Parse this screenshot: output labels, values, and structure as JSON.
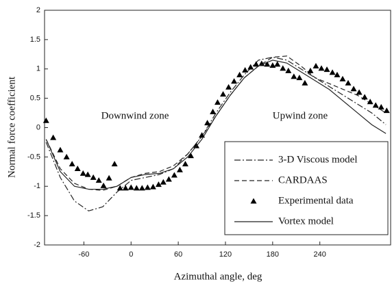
{
  "chart_data": {
    "type": "line",
    "xlabel": "Azimuthal angle, deg",
    "ylabel": "Normal force coefficient",
    "annotations": [
      "Downwind zone",
      "Upwind zone"
    ],
    "xlim": [
      -110,
      330
    ],
    "ylim": [
      -2,
      2
    ],
    "xticks": [
      -60,
      0,
      60,
      120,
      180,
      240
    ],
    "yticks": [
      -2,
      -1.5,
      -1,
      -0.5,
      0,
      0.5,
      1,
      1.5,
      2
    ],
    "series": [
      {
        "name": "3-D Viscous model",
        "color": "#222",
        "style": "dash-dot",
        "x": [
          -108,
          -90,
          -72,
          -54,
          -36,
          -18,
          0,
          18,
          36,
          54,
          72,
          90,
          108,
          126,
          144,
          162,
          180,
          198,
          216,
          234,
          252,
          270,
          288,
          306,
          324
        ],
        "values": [
          -0.25,
          -0.85,
          -1.25,
          -1.42,
          -1.35,
          -1.1,
          -0.9,
          -0.85,
          -0.8,
          -0.7,
          -0.45,
          -0.15,
          0.25,
          0.6,
          0.9,
          1.15,
          1.2,
          1.15,
          1.0,
          0.85,
          0.7,
          0.55,
          0.4,
          0.25,
          0.05
        ]
      },
      {
        "name": "CARDAAS",
        "color": "#222",
        "style": "dash",
        "x": [
          -108,
          -90,
          -72,
          -54,
          -36,
          -18,
          0,
          18,
          36,
          54,
          72,
          90,
          108,
          126,
          144,
          162,
          180,
          198,
          216,
          234,
          252,
          270,
          288,
          306,
          324
        ],
        "values": [
          -0.2,
          -0.7,
          -0.95,
          -1.05,
          -1.07,
          -1.0,
          -0.85,
          -0.78,
          -0.75,
          -0.65,
          -0.45,
          -0.15,
          0.2,
          0.55,
          0.85,
          1.05,
          1.2,
          1.22,
          1.05,
          0.85,
          0.75,
          0.65,
          0.55,
          0.4,
          0.25
        ]
      },
      {
        "name": "Experimental data",
        "color": "#000",
        "style": "triangle",
        "x": [
          -108,
          -99,
          -90,
          -82,
          -75,
          -68,
          -61,
          -55,
          -48,
          -41,
          -35,
          -28,
          -21,
          -14,
          -7,
          0,
          7,
          14,
          21,
          28,
          35,
          41,
          48,
          55,
          62,
          69,
          76,
          83,
          90,
          97,
          104,
          110,
          117,
          124,
          131,
          138,
          145,
          152,
          159,
          166,
          173,
          180,
          186,
          193,
          200,
          207,
          214,
          221,
          228,
          235,
          242,
          249,
          256,
          262,
          269,
          276,
          283,
          290,
          297,
          304,
          311,
          318,
          325
        ],
        "values": [
          0.12,
          -0.17,
          -0.38,
          -0.5,
          -0.62,
          -0.7,
          -0.78,
          -0.8,
          -0.85,
          -0.9,
          -0.99,
          -0.86,
          -0.62,
          -1.03,
          -1.03,
          -1.02,
          -1.03,
          -1.03,
          -1.02,
          -1.01,
          -0.97,
          -0.93,
          -0.88,
          -0.81,
          -0.72,
          -0.62,
          -0.48,
          -0.31,
          -0.13,
          0.08,
          0.27,
          0.43,
          0.57,
          0.69,
          0.79,
          0.9,
          0.98,
          1.03,
          1.08,
          1.09,
          1.08,
          1.06,
          1.08,
          1.01,
          0.97,
          0.87,
          0.85,
          0.76,
          0.97,
          1.05,
          1.01,
          0.99,
          0.94,
          0.9,
          0.83,
          0.76,
          0.66,
          0.6,
          0.52,
          0.44,
          0.38,
          0.35,
          0.29
        ]
      },
      {
        "name": "Vortex model",
        "color": "#222",
        "style": "solid",
        "x": [
          -108,
          -90,
          -72,
          -54,
          -36,
          -18,
          0,
          18,
          36,
          54,
          72,
          90,
          108,
          126,
          144,
          162,
          180,
          198,
          216,
          234,
          252,
          270,
          288,
          306,
          324
        ],
        "values": [
          -0.2,
          -0.75,
          -1.0,
          -1.05,
          -1.05,
          -1.0,
          -0.85,
          -0.8,
          -0.78,
          -0.7,
          -0.5,
          -0.2,
          0.2,
          0.55,
          0.85,
          1.05,
          1.15,
          1.1,
          0.95,
          0.8,
          0.65,
          0.45,
          0.25,
          0.05,
          -0.1
        ]
      }
    ]
  }
}
